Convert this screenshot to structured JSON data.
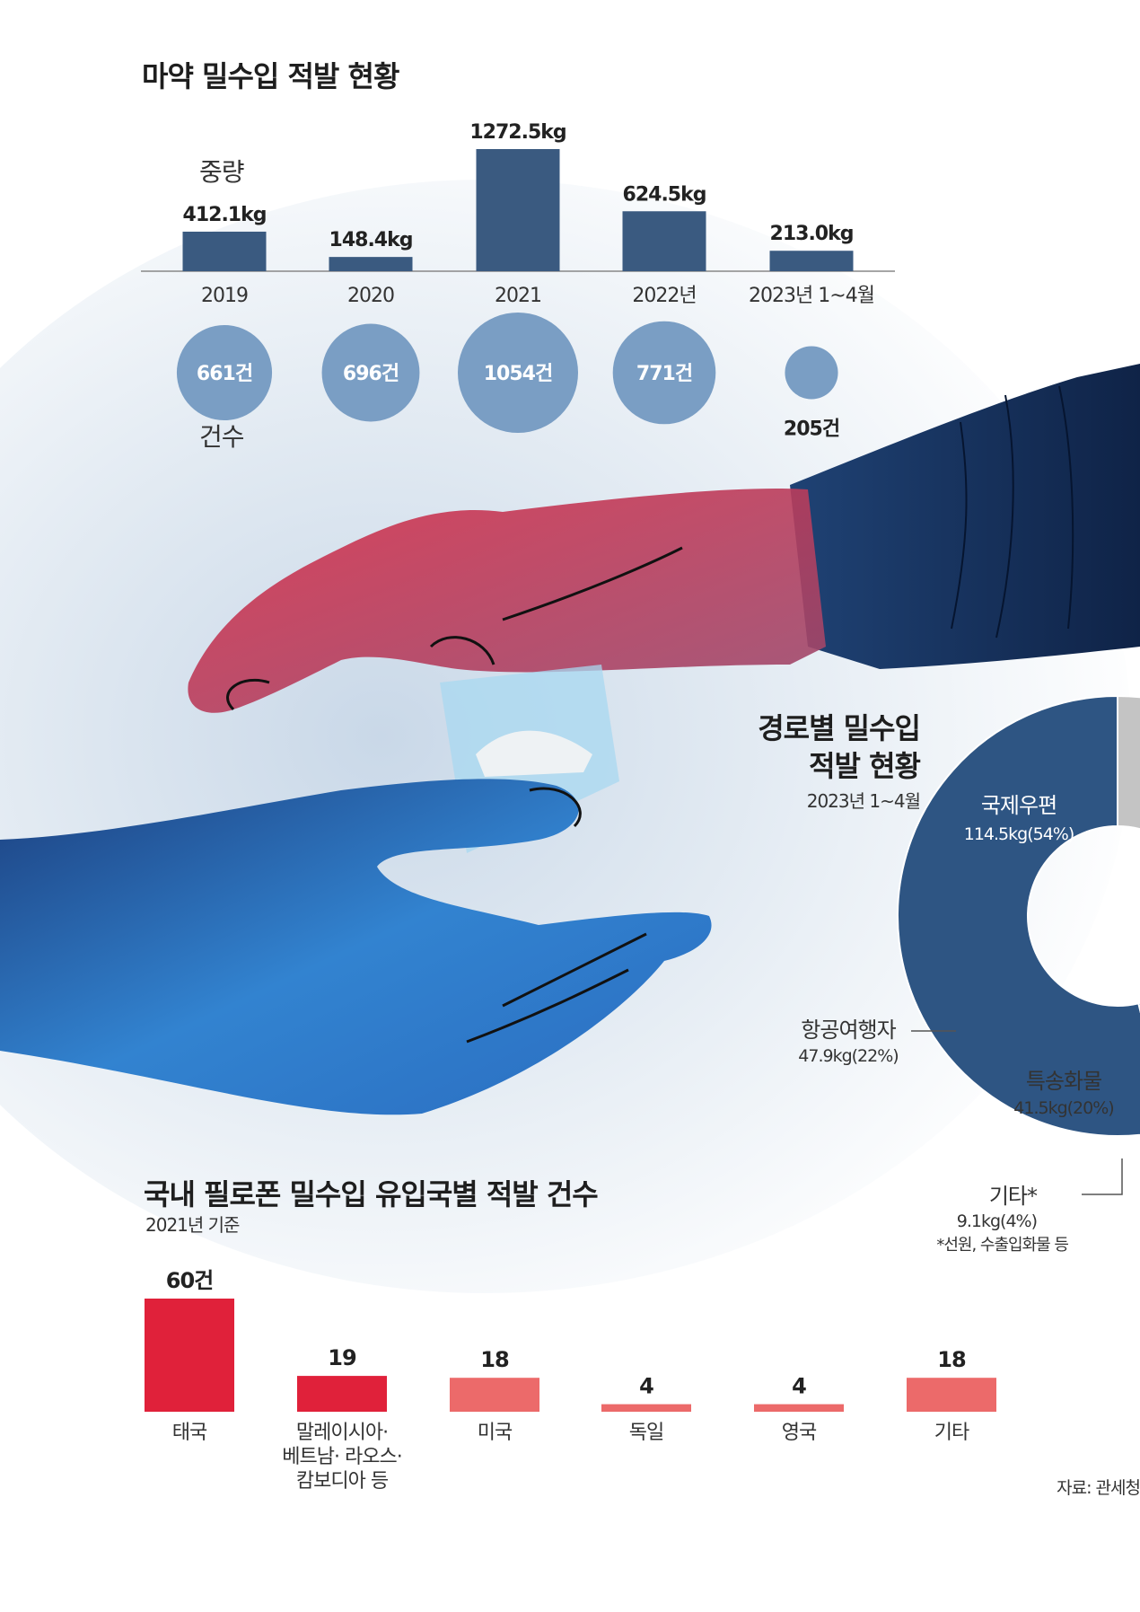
{
  "colors": {
    "weight_bar": "#3a5a80",
    "count_circle": "#7a9ec4",
    "red_strong": "#e0213a",
    "red_light": "#ec6a6a",
    "donut": [
      "#2e5583",
      "#3a86c9",
      "#b8d8f0",
      "#c4c4c4"
    ],
    "red_hand": "#b5435f",
    "blue_hand": "#2f6fbd",
    "sleeve": "#1d3a66"
  },
  "main_title": "마약 밀수입 적발 현황",
  "weight_axis_label": "중량",
  "count_axis_label": "건수",
  "source": "자료: 관세청",
  "chart_data": [
    {
      "type": "bar",
      "title": "마약 밀수입 적발 현황",
      "ylabel": "중량",
      "unit": "kg",
      "categories": [
        "2019",
        "2020",
        "2021",
        "2022년",
        "2023년 1~4월"
      ],
      "values": [
        412.1,
        148.4,
        1272.5,
        624.5,
        213.0
      ],
      "value_labels": [
        "412.1kg",
        "148.4kg",
        "1272.5kg",
        "624.5kg",
        "213.0kg"
      ],
      "count_label": "건수",
      "counts": [
        661,
        696,
        1054,
        771,
        205
      ],
      "count_labels": [
        "661건",
        "696건",
        "1054건",
        "771건",
        "205건"
      ]
    },
    {
      "type": "pie",
      "title": "경로별 밀수입 적발 현황",
      "title_lines": [
        "경로별 밀수입",
        "적발 현황"
      ],
      "subtitle": "2023년 1~4월",
      "slices": [
        {
          "name": "국제우편",
          "value": 114.5,
          "percent": 54,
          "value_label": "114.5kg(54%)"
        },
        {
          "name": "항공여행자",
          "value": 47.9,
          "percent": 22,
          "value_label": "47.9kg(22%)"
        },
        {
          "name": "특송화물",
          "value": 41.5,
          "percent": 20,
          "value_label": "41.5kg(20%)"
        },
        {
          "name": "기타*",
          "value": 9.1,
          "percent": 4,
          "value_label": "9.1kg(4%)"
        }
      ],
      "footnote": "*선원, 수출입화물 등"
    },
    {
      "type": "bar",
      "title": "국내 필로폰 밀수입 유입국별 적발 건수",
      "subtitle": "2021년 기준",
      "categories": [
        "태국",
        "말레이시아·\n베트남· 라오스·\n캄보디아 등",
        "미국",
        "독일",
        "영국",
        "기타"
      ],
      "values": [
        60,
        19,
        18,
        4,
        4,
        18
      ],
      "value_labels": [
        "60건",
        "19",
        "18",
        "4",
        "4",
        "18"
      ],
      "highlight": [
        true,
        true,
        false,
        false,
        false,
        false
      ]
    }
  ]
}
